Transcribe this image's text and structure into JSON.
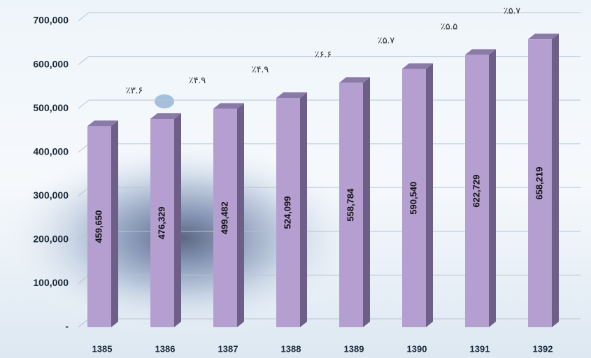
{
  "chart_data": {
    "type": "bar",
    "categories": [
      "1385",
      "1386",
      "1387",
      "1388",
      "1389",
      "1390",
      "1391",
      "1392"
    ],
    "values": [
      459650,
      476329,
      499482,
      524099,
      558784,
      590540,
      622729,
      658219
    ],
    "value_labels": [
      "459,650",
      "476,329",
      "499,482",
      "524,099",
      "558,784",
      "590,540",
      "622,729",
      "658,219"
    ],
    "annotations": [
      null,
      "٪۳.۶",
      "٪۴.۹",
      "٪۴.۹",
      "٪۶.۶",
      "٪۵.۷",
      "٪۵.۵",
      "٪۵.۷"
    ],
    "color": "#b49fd0",
    "ylim": [
      0,
      700000
    ],
    "yticks": [
      {
        "value": 0,
        "label": "-"
      },
      {
        "value": 100000,
        "label": "100,000"
      },
      {
        "value": 200000,
        "label": "200,000"
      },
      {
        "value": 300000,
        "label": "300,000"
      },
      {
        "value": 400000,
        "label": "400,000"
      },
      {
        "value": 500000,
        "label": "500,000"
      },
      {
        "value": 600000,
        "label": "600,000"
      },
      {
        "value": 700000,
        "label": "700,000"
      }
    ],
    "grid": true
  }
}
